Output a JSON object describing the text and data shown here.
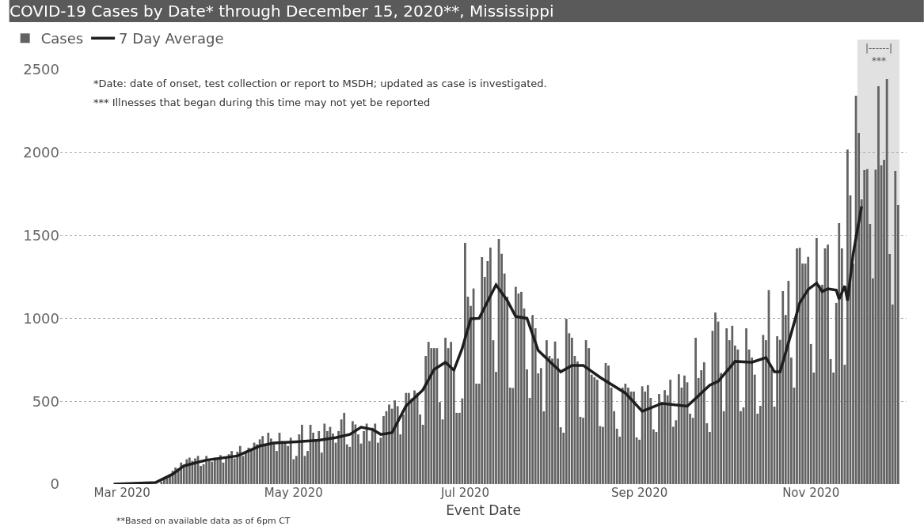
{
  "chart_data": {
    "type": "bar",
    "title": "COVID-19 Cases by Date* through December 15, 2020**, Mississippi",
    "xlabel": "Event Date",
    "annotations": [
      "*Date: date of onset, test collection or report to MSDH; updated as case is investigated.",
      "*** Illnesses that began during this time may not yet be reported",
      "**Based on available data as of 6pm CT"
    ],
    "x": [
      "2020-02-26",
      "2020-02-27",
      "2020-02-28",
      "2020-02-29",
      "2020-03-01",
      "2020-03-02",
      "2020-03-03",
      "2020-03-04",
      "2020-03-05",
      "2020-03-06",
      "2020-03-07",
      "2020-03-08",
      "2020-03-09",
      "2020-03-10",
      "2020-03-11",
      "2020-03-12",
      "2020-03-13",
      "2020-03-14",
      "2020-03-15",
      "2020-03-16",
      "2020-03-17",
      "2020-03-18",
      "2020-03-19",
      "2020-03-20",
      "2020-03-21",
      "2020-03-22",
      "2020-03-23",
      "2020-03-24",
      "2020-03-25",
      "2020-03-26",
      "2020-03-27",
      "2020-03-28",
      "2020-03-29",
      "2020-03-30",
      "2020-03-31",
      "2020-04-01",
      "2020-04-02",
      "2020-04-03",
      "2020-04-04",
      "2020-04-05",
      "2020-04-06",
      "2020-04-07",
      "2020-04-08",
      "2020-04-09",
      "2020-04-10",
      "2020-04-11",
      "2020-04-12",
      "2020-04-13",
      "2020-04-14",
      "2020-04-15",
      "2020-04-16",
      "2020-04-17",
      "2020-04-18",
      "2020-04-19",
      "2020-04-20",
      "2020-04-21",
      "2020-04-22",
      "2020-04-23",
      "2020-04-24",
      "2020-04-25",
      "2020-04-26",
      "2020-04-27",
      "2020-04-28",
      "2020-04-29",
      "2020-04-30",
      "2020-05-01",
      "2020-05-02",
      "2020-05-03",
      "2020-05-04",
      "2020-05-05",
      "2020-05-06",
      "2020-05-07",
      "2020-05-08",
      "2020-05-09",
      "2020-05-10",
      "2020-05-11",
      "2020-05-12",
      "2020-05-13",
      "2020-05-14",
      "2020-05-15",
      "2020-05-16",
      "2020-05-17",
      "2020-05-18",
      "2020-05-19",
      "2020-05-20",
      "2020-05-21",
      "2020-05-22",
      "2020-05-23",
      "2020-05-24",
      "2020-05-25",
      "2020-05-26",
      "2020-05-27",
      "2020-05-28",
      "2020-05-29",
      "2020-05-30",
      "2020-05-31",
      "2020-06-01",
      "2020-06-02",
      "2020-06-03",
      "2020-06-04",
      "2020-06-05",
      "2020-06-06",
      "2020-06-07",
      "2020-06-08",
      "2020-06-09",
      "2020-06-10",
      "2020-06-11",
      "2020-06-12",
      "2020-06-13",
      "2020-06-14",
      "2020-06-15",
      "2020-06-16",
      "2020-06-17",
      "2020-06-18",
      "2020-06-19",
      "2020-06-20",
      "2020-06-21",
      "2020-06-22",
      "2020-06-23",
      "2020-06-24",
      "2020-06-25",
      "2020-06-26",
      "2020-06-27",
      "2020-06-28",
      "2020-06-29",
      "2020-06-30",
      "2020-07-01",
      "2020-07-02",
      "2020-07-03",
      "2020-07-04",
      "2020-07-05",
      "2020-07-06",
      "2020-07-07",
      "2020-07-08",
      "2020-07-09",
      "2020-07-10",
      "2020-07-11",
      "2020-07-12",
      "2020-07-13",
      "2020-07-14",
      "2020-07-15",
      "2020-07-16",
      "2020-07-17",
      "2020-07-18",
      "2020-07-19",
      "2020-07-20",
      "2020-07-21",
      "2020-07-22",
      "2020-07-23",
      "2020-07-24",
      "2020-07-25",
      "2020-07-26",
      "2020-07-27",
      "2020-07-28",
      "2020-07-29",
      "2020-07-30",
      "2020-07-31",
      "2020-08-01",
      "2020-08-02",
      "2020-08-03",
      "2020-08-04",
      "2020-08-05",
      "2020-08-06",
      "2020-08-07",
      "2020-08-08",
      "2020-08-09",
      "2020-08-10",
      "2020-08-11",
      "2020-08-12",
      "2020-08-13",
      "2020-08-14",
      "2020-08-15",
      "2020-08-16",
      "2020-08-17",
      "2020-08-18",
      "2020-08-19",
      "2020-08-20",
      "2020-08-21",
      "2020-08-22",
      "2020-08-23",
      "2020-08-24",
      "2020-08-25",
      "2020-08-26",
      "2020-08-27",
      "2020-08-28",
      "2020-08-29",
      "2020-08-30",
      "2020-08-31",
      "2020-09-01",
      "2020-09-02",
      "2020-09-03",
      "2020-09-04",
      "2020-09-05",
      "2020-09-06",
      "2020-09-07",
      "2020-09-08",
      "2020-09-09",
      "2020-09-10",
      "2020-09-11",
      "2020-09-12",
      "2020-09-13",
      "2020-09-14",
      "2020-09-15",
      "2020-09-16",
      "2020-09-17",
      "2020-09-18",
      "2020-09-19",
      "2020-09-20",
      "2020-09-21",
      "2020-09-22",
      "2020-09-23",
      "2020-09-24",
      "2020-09-25",
      "2020-09-26",
      "2020-09-27",
      "2020-09-28",
      "2020-09-29",
      "2020-09-30",
      "2020-10-01",
      "2020-10-02",
      "2020-10-03",
      "2020-10-04",
      "2020-10-05",
      "2020-10-06",
      "2020-10-07",
      "2020-10-08",
      "2020-10-09",
      "2020-10-10",
      "2020-10-11",
      "2020-10-12",
      "2020-10-13",
      "2020-10-14",
      "2020-10-15",
      "2020-10-16",
      "2020-10-17",
      "2020-10-18",
      "2020-10-19",
      "2020-10-20",
      "2020-10-21",
      "2020-10-22",
      "2020-10-23",
      "2020-10-24",
      "2020-10-25",
      "2020-10-26",
      "2020-10-27",
      "2020-10-28",
      "2020-10-29",
      "2020-10-30",
      "2020-10-31",
      "2020-11-01",
      "2020-11-02",
      "2020-11-03",
      "2020-11-04",
      "2020-11-05",
      "2020-11-06",
      "2020-11-07",
      "2020-11-08",
      "2020-11-09",
      "2020-11-10",
      "2020-11-11",
      "2020-11-12",
      "2020-11-13",
      "2020-11-14",
      "2020-11-15",
      "2020-11-16",
      "2020-11-17",
      "2020-11-18",
      "2020-11-19",
      "2020-11-20",
      "2020-11-21",
      "2020-11-22",
      "2020-11-23",
      "2020-11-24",
      "2020-11-25",
      "2020-11-26",
      "2020-11-27",
      "2020-11-28",
      "2020-11-29",
      "2020-11-30",
      "2020-12-01",
      "2020-12-02"
    ],
    "series": [
      {
        "name": "Cases",
        "color": "#626262",
        "values": [
          0,
          0,
          0,
          0,
          0,
          0,
          0,
          0,
          0,
          0,
          0,
          0,
          0,
          0,
          0,
          0,
          0,
          null,
          15,
          40,
          35,
          60,
          80,
          100,
          95,
          130,
          110,
          150,
          160,
          140,
          155,
          170,
          110,
          120,
          170,
          140,
          135,
          160,
          150,
          175,
          130,
          160,
          180,
          200,
          155,
          195,
          230,
          170,
          190,
          220,
          210,
          250,
          240,
          270,
          290,
          240,
          310,
          275,
          250,
          200,
          310,
          260,
          245,
          230,
          280,
          150,
          170,
          300,
          358,
          170,
          200,
          358,
          310,
          260,
          320,
          190,
          365,
          320,
          345,
          305,
          250,
          320,
          390,
          430,
          240,
          225,
          380,
          360,
          300,
          245,
          320,
          365,
          260,
          340,
          365,
          250,
          280,
          410,
          440,
          480,
          455,
          505,
          470,
          300,
          420,
          550,
          550,
          517,
          565,
          550,
          420,
          358,
          773,
          858,
          820,
          820,
          820,
          495,
          390,
          883,
          820,
          858,
          677,
          430,
          430,
          517,
          1455,
          1130,
          1075,
          1180,
          606,
          606,
          1369,
          1250,
          1346,
          1426,
          868,
          677,
          1479,
          1390,
          1270,
          1130,
          582,
          580,
          1190,
          1150,
          1160,
          1059,
          692,
          520,
          1020,
          940,
          668,
          700,
          439,
          868,
          773,
          757,
          860,
          757,
          343,
          310,
          997,
          910,
          883,
          773,
          740,
          406,
          400,
          868,
          820,
          660,
          645,
          630,
          350,
          345,
          730,
          715,
          582,
          440,
          334,
          286,
          582,
          606,
          582,
          558,
          558,
          282,
          268,
          590,
          558,
          597,
          520,
          330,
          315,
          544,
          496,
          567,
          536,
          630,
          346,
          385,
          663,
          582,
          655,
          614,
          425,
          400,
          883,
          640,
          687,
          735,
          367,
          315,
          925,
          1035,
          980,
          670,
          440,
          940,
          868,
          955,
          836,
          812,
          440,
          463,
          940,
          812,
          763,
          660,
          425,
          472,
          900,
          868,
          1170,
          692,
          468,
          892,
          870,
          1164,
          1020,
          1226,
          763,
          582,
          1422,
          1425,
          1330,
          1330,
          1370,
          845,
          673,
          1484,
          1202,
          1202,
          1422,
          1445,
          754,
          673,
          1093,
          1575,
          1422,
          720,
          2018,
          1741,
          1330,
          2342,
          2118,
          1718,
          1894,
          1900,
          1570,
          1240,
          1897,
          2400,
          1923,
          1956,
          2443,
          1388,
          1083,
          1889,
          1684
        ]
      },
      {
        "name": "7 Day Average",
        "type": "line",
        "color": "#1e1e1e",
        "x": [
          "2020-02-27",
          "2020-03-13",
          "2020-03-19",
          "2020-03-23",
          "2020-03-31",
          "2020-04-11",
          "2020-04-19",
          "2020-04-24",
          "2020-05-02",
          "2020-05-10",
          "2020-05-16",
          "2020-05-21",
          "2020-05-25",
          "2020-05-29",
          "2020-06-01",
          "2020-06-05",
          "2020-06-10",
          "2020-06-16",
          "2020-06-20",
          "2020-06-24",
          "2020-06-27",
          "2020-06-30",
          "2020-07-03",
          "2020-07-06",
          "2020-07-12",
          "2020-07-16",
          "2020-07-19",
          "2020-07-23",
          "2020-07-27",
          "2020-08-01",
          "2020-08-04",
          "2020-08-08",
          "2020-08-12",
          "2020-08-18",
          "2020-08-27",
          "2020-09-02",
          "2020-09-09",
          "2020-09-18",
          "2020-09-26",
          "2020-09-29",
          "2020-10-05",
          "2020-10-11",
          "2020-10-16",
          "2020-10-19",
          "2020-10-21",
          "2020-10-25",
          "2020-10-28",
          "2020-10-31",
          "2020-11-03",
          "2020-11-05",
          "2020-11-07",
          "2020-11-10",
          "2020-11-11",
          "2020-11-13",
          "2020-11-14",
          "2020-11-16",
          "2020-11-19"
        ],
        "values": [
          0,
          10,
          60,
          110,
          145,
          170,
          230,
          248,
          255,
          265,
          280,
          300,
          343,
          330,
          300,
          310,
          472,
          568,
          692,
          735,
          687,
          820,
          997,
          1000,
          1202,
          1107,
          1011,
          1000,
          806,
          725,
          677,
          716,
          716,
          644,
          549,
          439,
          487,
          470,
          597,
          620,
          740,
          735,
          763,
          677,
          677,
          911,
          1093,
          1174,
          1212,
          1162,
          1178,
          1170,
          1116,
          1195,
          1107,
          1388,
          1675
        ]
      }
    ],
    "xlim": [
      "2020-02-08",
      "2020-12-05"
    ],
    "xticks": [
      {
        "value": "2020-03-01",
        "label": "Mar 2020"
      },
      {
        "value": "2020-05-01",
        "label": "May 2020"
      },
      {
        "value": "2020-07-01",
        "label": "Jul 2020"
      },
      {
        "value": "2020-09-01",
        "label": "Sep 2020"
      },
      {
        "value": "2020-11-01",
        "label": "Nov 2020"
      }
    ],
    "ylim": [
      0,
      2500
    ],
    "yticks": [
      0,
      500,
      1000,
      1500,
      2000,
      2500
    ],
    "grid": "y",
    "legend": "top left",
    "marker": "none",
    "line_style": "solid",
    "bands": [
      {
        "axis": "x",
        "from": "2020-11-17T12:00",
        "to": "2020-12-02T12:00",
        "label": "|------|\n***",
        "color": "#e1e1e1"
      }
    ]
  }
}
